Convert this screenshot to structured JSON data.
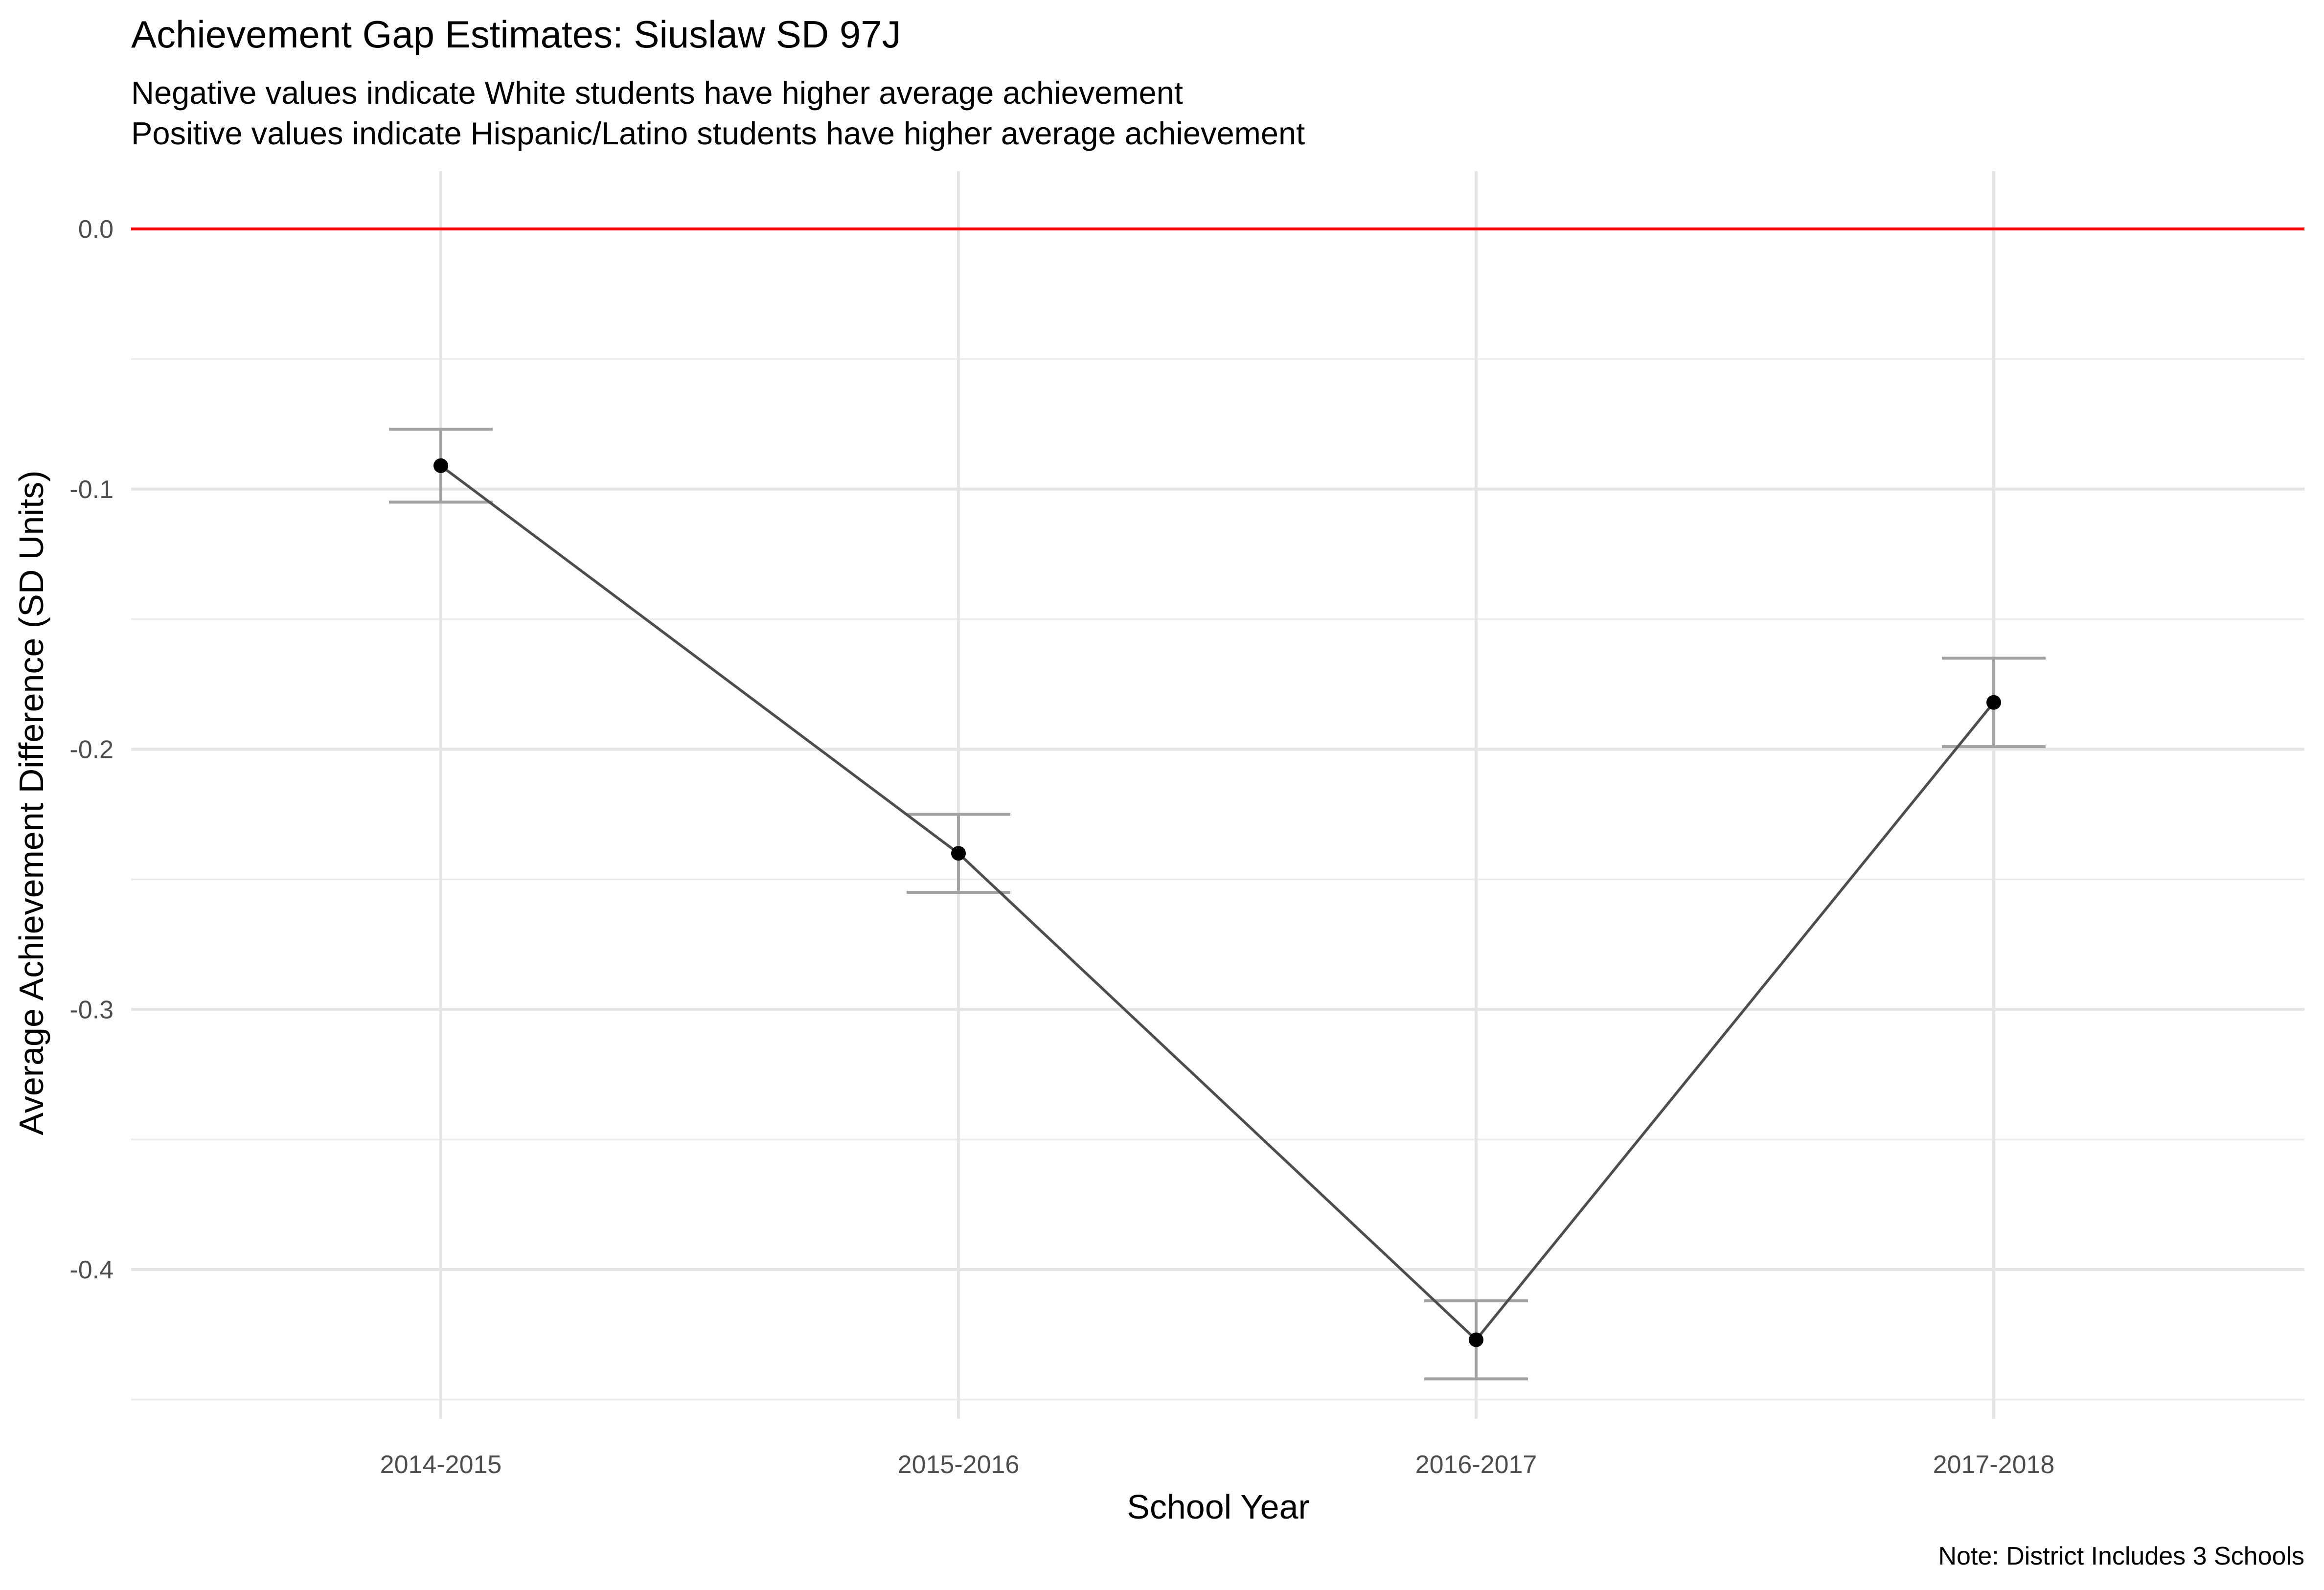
{
  "chart_data": {
    "type": "line",
    "title": "Achievement Gap Estimates: Siuslaw SD 97J",
    "subtitle_lines": [
      "Negative values indicate White students have higher average achievement",
      "Positive values indicate Hispanic/Latino students have higher average achievement"
    ],
    "xlabel": "School Year",
    "ylabel": "Average Achievement Difference (SD Units)",
    "caption": "Note: District Includes 3 Schools",
    "categories": [
      "2014-2015",
      "2015-2016",
      "2016-2017",
      "2017-2018"
    ],
    "series": [
      {
        "values": [
          -0.091,
          -0.24,
          -0.427,
          -0.182
        ],
        "lower": [
          -0.105,
          -0.255,
          -0.442,
          -0.199
        ],
        "upper": [
          -0.077,
          -0.225,
          -0.412,
          -0.165
        ]
      }
    ],
    "reference_line": {
      "y": 0.0,
      "color": "#ff0000"
    },
    "ylim": [
      -0.5,
      0.022
    ],
    "yticks": [
      0.0,
      -0.1,
      -0.2,
      -0.3,
      -0.4
    ],
    "ytick_labels": [
      "0.0",
      "-0.1",
      "-0.2",
      "-0.3",
      "-0.4"
    ],
    "y_minor_ticks": [
      -0.05,
      -0.15,
      -0.25,
      -0.35,
      -0.45
    ],
    "grid": true,
    "legend": "none",
    "colors": {
      "line": "#4d4d4d",
      "point": "#000000",
      "errorbar": "#a3a3a3",
      "grid": "#e5e5e5"
    }
  }
}
